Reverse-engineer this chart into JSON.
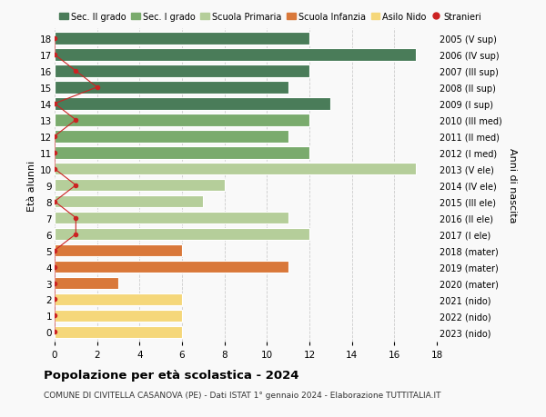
{
  "ages": [
    18,
    17,
    16,
    15,
    14,
    13,
    12,
    11,
    10,
    9,
    8,
    7,
    6,
    5,
    4,
    3,
    2,
    1,
    0
  ],
  "years": [
    "2005 (V sup)",
    "2006 (IV sup)",
    "2007 (III sup)",
    "2008 (II sup)",
    "2009 (I sup)",
    "2010 (III med)",
    "2011 (II med)",
    "2012 (I med)",
    "2013 (V ele)",
    "2014 (IV ele)",
    "2015 (III ele)",
    "2016 (II ele)",
    "2017 (I ele)",
    "2018 (mater)",
    "2019 (mater)",
    "2020 (mater)",
    "2021 (nido)",
    "2022 (nido)",
    "2023 (nido)"
  ],
  "values": [
    12,
    17,
    12,
    11,
    13,
    12,
    11,
    12,
    17,
    8,
    7,
    11,
    12,
    6,
    11,
    3,
    6,
    6,
    6
  ],
  "stranieri": [
    0,
    0,
    1,
    2,
    0,
    1,
    0,
    0,
    0,
    1,
    0,
    1,
    1,
    0,
    0,
    0,
    0,
    0,
    0
  ],
  "bar_colors": [
    "#4a7c59",
    "#4a7c59",
    "#4a7c59",
    "#4a7c59",
    "#4a7c59",
    "#7aab6d",
    "#7aab6d",
    "#7aab6d",
    "#b5ce9a",
    "#b5ce9a",
    "#b5ce9a",
    "#b5ce9a",
    "#b5ce9a",
    "#d9783a",
    "#d9783a",
    "#d9783a",
    "#f5d77a",
    "#f5d77a",
    "#f5d77a"
  ],
  "color_sec2": "#4a7c59",
  "color_sec1": "#7aab6d",
  "color_prim": "#b5ce9a",
  "color_inf": "#d9783a",
  "color_nido": "#f5d77a",
  "color_stranieri": "#cc2222",
  "background_color": "#f9f9f9",
  "grid_color": "#cccccc",
  "title": "Popolazione per età scolastica - 2024",
  "subtitle": "COMUNE DI CIVITELLA CASANOVA (PE) - Dati ISTAT 1° gennaio 2024 - Elaborazione TUTTITALIA.IT",
  "ylabel": "Età alunni",
  "ylabel2": "Anni di nascita",
  "xlabel_vals": [
    0,
    2,
    4,
    6,
    8,
    10,
    12,
    14,
    16,
    18
  ],
  "xlim": [
    0,
    18
  ],
  "bar_height": 0.75
}
